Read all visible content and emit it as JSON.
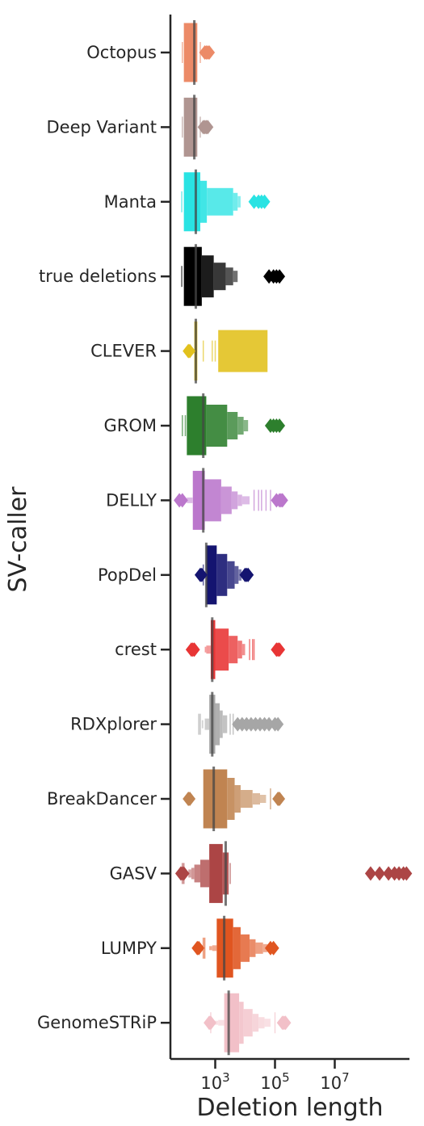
{
  "chart_data": {
    "type": "boxen",
    "orientation": "horizontal",
    "title": "",
    "xlabel": "Deletion length",
    "ylabel": "SV-caller",
    "xscale": "log10",
    "xlim_log10": [
      1.5,
      9.5
    ],
    "x_ticks": [
      {
        "log10": 3,
        "base": "10",
        "exp": "3"
      },
      {
        "log10": 5,
        "base": "10",
        "exp": "5"
      },
      {
        "log10": 7,
        "base": "10",
        "exp": "7"
      }
    ],
    "grid": false,
    "legend": "none",
    "series": [
      {
        "name": "Octopus",
        "color": "#ec8a67",
        "median_log10": 2.3,
        "boxes": [
          [
            1.95,
            2.4
          ]
        ],
        "lines": [
          1.9,
          2.5
        ],
        "outliers": [
          2.65,
          2.7,
          2.75,
          2.8
        ]
      },
      {
        "name": "Deep Variant",
        "color": "#b09591",
        "median_log10": 2.3,
        "boxes": [
          [
            1.95,
            2.4
          ]
        ],
        "lines": [
          1.9,
          2.5
        ],
        "outliers": [
          2.6,
          2.65,
          2.7,
          2.75
        ]
      },
      {
        "name": "Manta",
        "color": "#29e3e3",
        "median_log10": 2.35,
        "boxes": [
          [
            1.95,
            2.5
          ],
          [
            2.5,
            2.72
          ],
          [
            2.72,
            3.6
          ],
          [
            3.6,
            3.75
          ],
          [
            3.75,
            3.85
          ]
        ],
        "lines": [
          1.88
        ],
        "outliers": [
          4.3,
          4.45,
          4.55,
          4.65
        ]
      },
      {
        "name": "true deletions",
        "color": "#000000",
        "median_log10": 2.35,
        "boxes": [
          [
            1.95,
            2.55
          ],
          [
            2.55,
            2.95
          ],
          [
            2.95,
            3.35
          ],
          [
            3.35,
            3.6
          ],
          [
            3.6,
            3.75
          ]
        ],
        "lines": [
          1.88
        ],
        "outliers": [
          4.8,
          4.95,
          5.05,
          5.15
        ]
      },
      {
        "name": "CLEVER",
        "color": "#e2c11d",
        "median_log10": 2.35,
        "boxes": [
          [
            2.3,
            2.4
          ],
          [
            3.1,
            4.75
          ]
        ],
        "lines": [
          2.6,
          2.9,
          3.0
        ],
        "outliers": [
          2.1,
          2.15
        ]
      },
      {
        "name": "GROM",
        "color": "#2d7f2d",
        "median_log10": 2.6,
        "boxes": [
          [
            2.05,
            2.7
          ],
          [
            2.7,
            3.4
          ],
          [
            3.4,
            3.75
          ],
          [
            3.75,
            3.95
          ],
          [
            3.95,
            4.1
          ]
        ],
        "lines": [
          1.9,
          2.0
        ],
        "outliers": [
          4.85,
          4.95,
          5.05,
          5.15
        ]
      },
      {
        "name": "DELLY",
        "color": "#bb77cc",
        "median_log10": 2.6,
        "boxes": [
          [
            2.25,
            2.65
          ],
          [
            2.65,
            3.2
          ],
          [
            3.2,
            3.55
          ],
          [
            3.55,
            3.75
          ],
          [
            3.75,
            3.9
          ],
          [
            3.9,
            4.15
          ],
          [
            2.05,
            2.25
          ],
          [
            1.95,
            2.05
          ]
        ],
        "lines": [
          4.3,
          4.45,
          4.55,
          4.7,
          4.85
        ],
        "outliers": [
          1.8,
          1.9,
          5.05,
          5.15,
          5.2,
          5.25
        ]
      },
      {
        "name": "PopDel",
        "color": "#141470",
        "median_log10": 2.7,
        "boxes": [
          [
            2.7,
            3.05
          ],
          [
            3.05,
            3.4
          ],
          [
            3.4,
            3.65
          ],
          [
            3.65,
            3.78
          ],
          [
            3.78,
            3.88
          ]
        ],
        "lines": [
          2.6
        ],
        "outliers": [
          2.5,
          2.55,
          4.0,
          4.05,
          4.1
        ]
      },
      {
        "name": "crest",
        "color": "#e83535",
        "median_log10": 2.9,
        "boxes": [
          [
            2.85,
            3.0
          ],
          [
            3.0,
            3.45
          ],
          [
            3.45,
            3.75
          ],
          [
            3.75,
            3.9
          ],
          [
            3.9,
            4.0
          ],
          [
            2.7,
            2.85
          ],
          [
            2.65,
            2.7
          ]
        ],
        "lines": [
          4.15,
          4.25,
          4.3
        ],
        "outliers": [
          2.2,
          2.25,
          2.3,
          5.05,
          5.1,
          5.15
        ]
      },
      {
        "name": "RDXplorer",
        "color": "#a6a6a6",
        "median_log10": 2.9,
        "boxes": [
          [
            2.8,
            3.0
          ],
          [
            3.0,
            3.15
          ],
          [
            3.15,
            3.25
          ],
          [
            3.25,
            3.4
          ],
          [
            2.65,
            2.8
          ],
          [
            2.55,
            2.6
          ]
        ],
        "lines": [
          2.45,
          2.5,
          3.5,
          3.6
        ],
        "outliers": [
          3.75,
          3.9,
          4.05,
          4.2,
          4.35,
          4.5,
          4.65,
          4.8,
          5.0,
          5.1
        ]
      },
      {
        "name": "BreakDancer",
        "color": "#c08451",
        "median_log10": 2.95,
        "boxes": [
          [
            2.6,
            3.4
          ],
          [
            3.4,
            3.65
          ],
          [
            3.65,
            3.85
          ],
          [
            3.85,
            4.25
          ],
          [
            4.25,
            4.5
          ],
          [
            4.5,
            4.7
          ]
        ],
        "lines": [
          4.85
        ],
        "outliers": [
          2.1,
          2.15,
          5.1,
          5.15
        ]
      },
      {
        "name": "GASV",
        "color": "#ac4545",
        "median_log10": 3.35,
        "boxes": [
          [
            2.8,
            3.25
          ],
          [
            3.25,
            3.45
          ],
          [
            2.5,
            2.8
          ],
          [
            2.3,
            2.5
          ],
          [
            2.2,
            2.3
          ],
          [
            2.1,
            2.2
          ]
        ],
        "lines": [
          3.5,
          1.9,
          1.95
        ],
        "outliers": [
          1.85,
          1.9,
          1.95,
          8.2,
          8.5,
          8.8,
          9.0,
          9.15,
          9.3,
          9.4
        ]
      },
      {
        "name": "LUMPY",
        "color": "#e05520",
        "median_log10": 3.3,
        "boxes": [
          [
            3.05,
            3.6
          ],
          [
            3.6,
            3.85
          ],
          [
            3.85,
            4.15
          ],
          [
            4.15,
            4.35
          ],
          [
            4.35,
            4.6
          ],
          [
            4.6,
            4.75
          ],
          [
            2.9,
            3.05
          ],
          [
            2.8,
            2.9
          ]
        ],
        "lines": [
          2.6,
          2.65
        ],
        "outliers": [
          2.4,
          2.45,
          4.85,
          4.95
        ]
      },
      {
        "name": "GenomeSTRiP",
        "color": "#f2c0c8",
        "median_log10": 3.45,
        "boxes": [
          [
            3.3,
            3.8
          ],
          [
            3.8,
            3.95
          ],
          [
            3.95,
            4.25
          ],
          [
            4.25,
            4.45
          ],
          [
            4.45,
            4.65
          ],
          [
            4.65,
            4.85
          ],
          [
            3.1,
            3.3
          ],
          [
            2.95,
            3.1
          ]
        ],
        "lines": [
          2.85,
          5.0
        ],
        "outliers": [
          2.8,
          2.85,
          5.25,
          5.3,
          5.35
        ]
      }
    ]
  }
}
